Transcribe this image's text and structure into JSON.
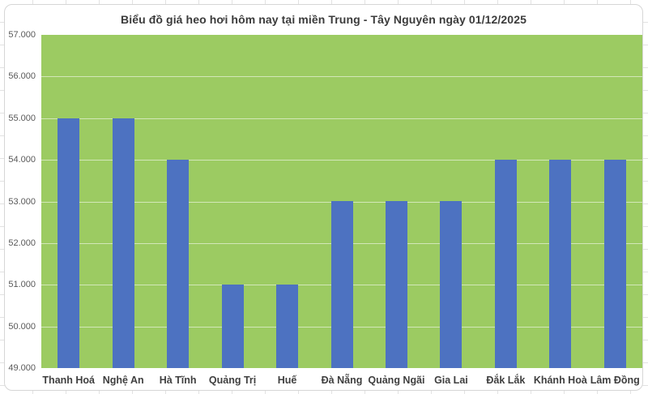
{
  "chart_data": {
    "type": "bar",
    "title": "Biểu đồ giá heo hơi hôm nay tại miền Trung - Tây Nguyên ngày 01/12/2025",
    "categories": [
      "Thanh Hoá",
      "Nghệ An",
      "Hà Tĩnh",
      "Quảng Trị",
      "Huế",
      "Đà Nẵng",
      "Quảng Ngãi",
      "Gia Lai",
      "Đắk Lắk",
      "Khánh Hoà",
      "Lâm Đồng"
    ],
    "values": [
      55000,
      55000,
      54000,
      51000,
      51000,
      53000,
      53000,
      53000,
      54000,
      54000,
      54000
    ],
    "xlabel": "",
    "ylabel": "",
    "ylim": [
      49000,
      57000
    ],
    "ytick_step": 1000,
    "ytick_labels": [
      "49.000",
      "50.000",
      "51.000",
      "52.000",
      "53.000",
      "54.000",
      "55.000",
      "56.000",
      "57.000"
    ],
    "grid": "horizontal-major",
    "legend_position": "none",
    "colors": {
      "bar": "#4D72C1",
      "plot_background": "#9CCB62",
      "gridline": "rgba(255,255,255,0.55)",
      "title_text": "#3B3B3B",
      "ytick_text": "#595959",
      "xtick_text": "#3F3F3F",
      "chart_border": "#D6D6D6",
      "sheet_gridline": "#E2E2E2"
    }
  }
}
